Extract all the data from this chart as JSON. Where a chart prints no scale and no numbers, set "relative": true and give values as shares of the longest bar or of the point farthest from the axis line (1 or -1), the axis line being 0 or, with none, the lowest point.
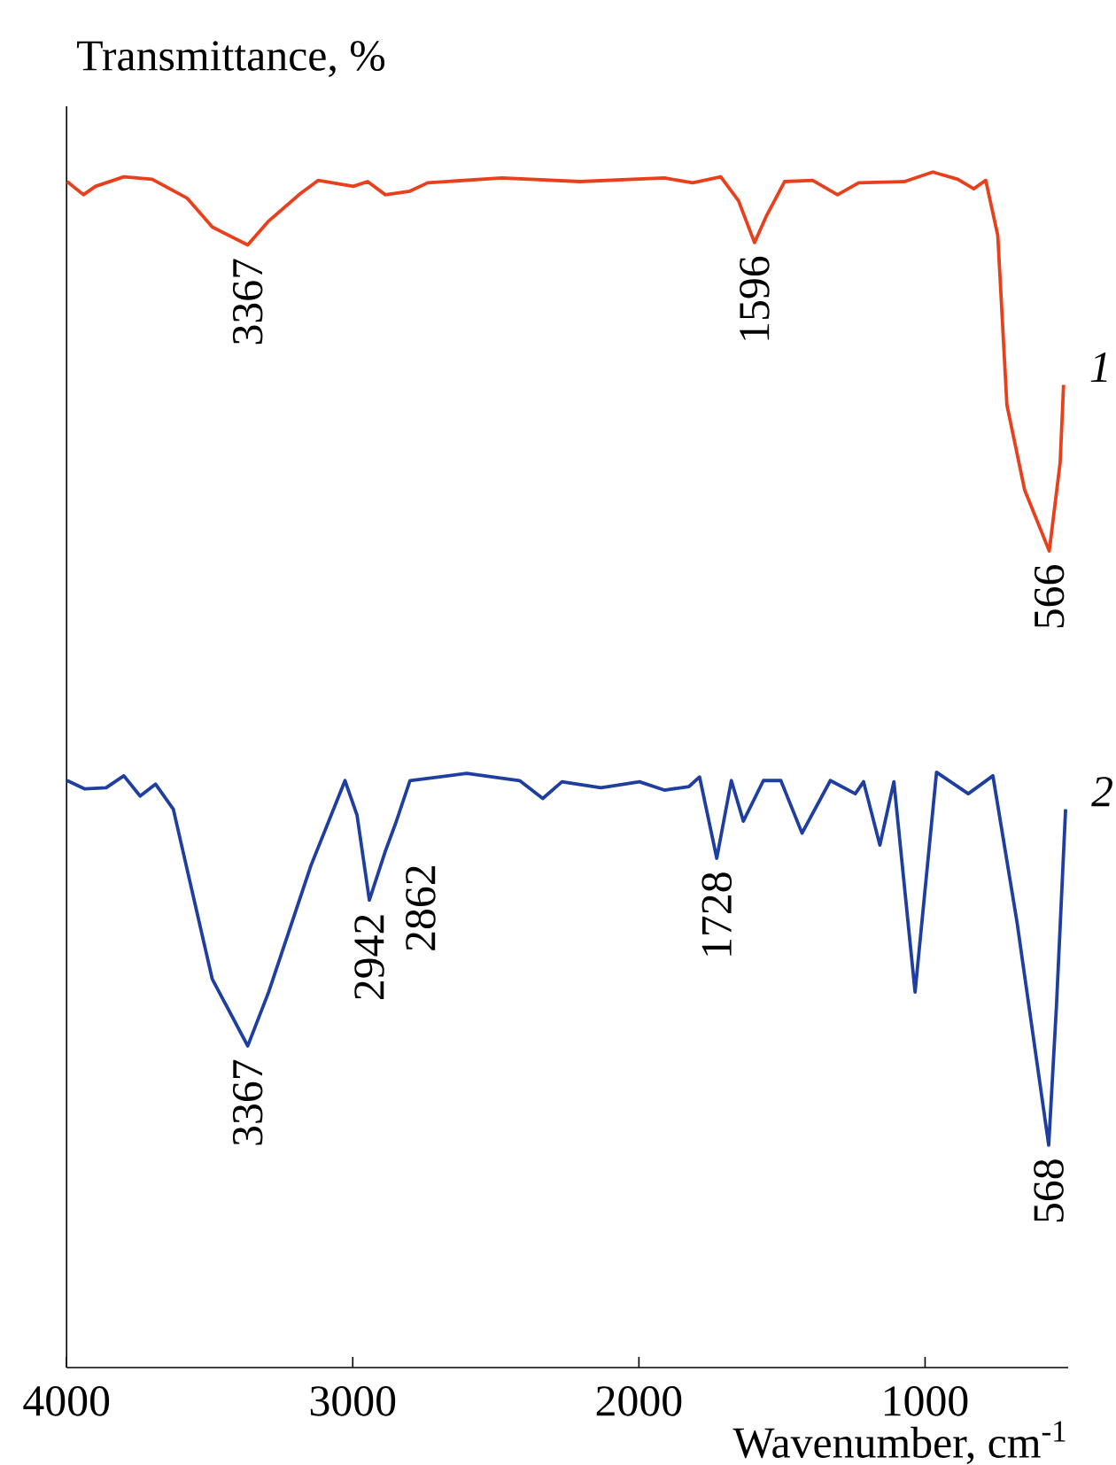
{
  "chart_data": {
    "type": "line",
    "relative": true,
    "ylabel": "Transmittance, %",
    "xlabel": "Wavenumber, cm$^{-1}$",
    "xlim": [
      4000,
      500
    ],
    "xticks": [
      4000,
      3000,
      2000,
      1000
    ],
    "series": [
      {
        "name": "1",
        "color": "#e8401c",
        "x": [
          3998,
          3941,
          3899,
          3800,
          3701,
          3578,
          3491,
          3367,
          3294,
          3183,
          3121,
          2998,
          2948,
          2886,
          2800,
          2738,
          2479,
          2207,
          1911,
          1812,
          1714,
          1652,
          1596,
          1553,
          1491,
          1393,
          1306,
          1232,
          1072,
          973,
          886,
          830,
          788,
          746,
          714,
          652,
          566,
          528,
          516
        ],
        "values": [
          0.992,
          0.981,
          0.988,
          0.996,
          0.994,
          0.978,
          0.954,
          0.939,
          0.959,
          0.982,
          0.993,
          0.988,
          0.992,
          0.981,
          0.984,
          0.991,
          0.995,
          0.992,
          0.995,
          0.991,
          0.996,
          0.976,
          0.941,
          0.964,
          0.992,
          0.993,
          0.981,
          0.991,
          0.992,
          1.0,
          0.994,
          0.986,
          0.993,
          0.947,
          0.805,
          0.734,
          0.683,
          0.757,
          0.822
        ]
      },
      {
        "name": "2",
        "color": "#1f3fa0",
        "x": [
          3998,
          3936,
          3862,
          3800,
          3743,
          3689,
          3627,
          3491,
          3367,
          3294,
          3146,
          3027,
          2985,
          2942,
          2886,
          2849,
          2800,
          2602,
          2417,
          2336,
          2269,
          2133,
          1998,
          1911,
          1825,
          1788,
          1728,
          1677,
          1635,
          1565,
          1504,
          1430,
          1331,
          1244,
          1215,
          1158,
          1109,
          1035,
          960,
          849,
          763,
          679,
          568,
          541,
          509
        ],
        "values": [
          0.491,
          0.484,
          0.485,
          0.495,
          0.478,
          0.488,
          0.467,
          0.325,
          0.269,
          0.314,
          0.42,
          0.491,
          0.462,
          0.391,
          0.432,
          0.456,
          0.491,
          0.497,
          0.491,
          0.476,
          0.49,
          0.485,
          0.49,
          0.483,
          0.486,
          0.494,
          0.426,
          0.491,
          0.457,
          0.491,
          0.491,
          0.447,
          0.491,
          0.48,
          0.49,
          0.437,
          0.49,
          0.314,
          0.498,
          0.48,
          0.495,
          0.373,
          0.186,
          0.302,
          0.467
        ]
      }
    ],
    "annotations": [
      {
        "text": "3367",
        "x": 3367,
        "y": 0.939
      },
      {
        "text": "1596",
        "x": 1596,
        "y": 0.941
      },
      {
        "text": "566",
        "x": 566,
        "y": 0.683
      },
      {
        "text": "3367",
        "x": 3367,
        "y": 0.269
      },
      {
        "text": "2942",
        "x": 2942,
        "y": 0.391
      },
      {
        "text": "2862",
        "x": 2862,
        "y": 0.432
      },
      {
        "text": "1728",
        "x": 1728,
        "y": 0.426
      },
      {
        "text": "568",
        "x": 568,
        "y": 0.186
      }
    ]
  }
}
